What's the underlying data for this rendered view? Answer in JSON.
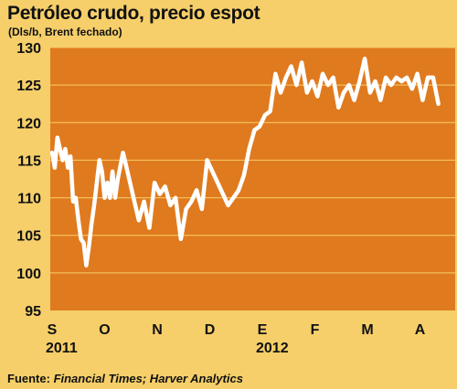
{
  "header": {
    "title": "Petróleo crudo, precio espot",
    "subtitle": "(Dls/b, Brent fechado)"
  },
  "footer": {
    "source_prefix": "Fuente: ",
    "source_names": "Financial Times; Harver Analytics"
  },
  "colors": {
    "page_bg": "#f6cf6a",
    "plot_bg": "#e07a1e",
    "line": "#ffffff",
    "grid": "#f6cf6a"
  },
  "chart_data": {
    "type": "line",
    "title": "Petróleo crudo, precio espot",
    "subtitle": "(Dls/b, Brent fechado)",
    "ylim": [
      95,
      130
    ],
    "yticks": [
      95,
      100,
      105,
      110,
      115,
      120,
      125,
      130
    ],
    "grid": true,
    "month_labels": [
      "S",
      "O",
      "N",
      "D",
      "E",
      "F",
      "M",
      "A"
    ],
    "year_labels": [
      {
        "label": "2011",
        "at_month": "S"
      },
      {
        "label": "2012",
        "at_month": "E"
      }
    ],
    "series": [
      {
        "x": [
          0.0,
          0.05,
          0.1,
          0.15,
          0.2,
          0.25,
          0.3,
          0.35,
          0.4,
          0.45,
          0.5,
          0.55,
          0.6,
          0.65,
          0.7,
          0.75,
          0.8,
          0.85,
          0.9,
          0.95,
          1.0,
          1.05,
          1.1,
          1.15,
          1.2,
          1.25,
          1.35,
          1.45,
          1.55,
          1.65,
          1.75,
          1.85,
          1.95,
          2.05,
          2.15,
          2.25,
          2.35,
          2.45,
          2.55,
          2.65,
          2.75,
          2.85,
          2.95,
          3.05,
          3.15,
          3.25,
          3.35,
          3.45,
          3.55,
          3.65,
          3.75,
          3.85,
          3.95,
          4.05,
          4.15,
          4.25,
          4.35,
          4.45,
          4.55,
          4.65,
          4.75,
          4.85,
          4.95,
          5.05,
          5.15,
          5.25,
          5.35,
          5.45,
          5.55,
          5.65,
          5.75,
          5.85,
          5.95,
          6.05,
          6.15,
          6.25,
          6.35,
          6.45,
          6.55,
          6.65,
          6.75,
          6.85,
          6.95,
          7.05,
          7.15,
          7.25,
          7.35
        ],
        "values": [
          116,
          114,
          118,
          116.5,
          115,
          116.5,
          114,
          115.5,
          109.5,
          110,
          107,
          104.5,
          104,
          101,
          103.5,
          106.5,
          109,
          112,
          115,
          113.5,
          110,
          112,
          110,
          113.5,
          110,
          112.5,
          116,
          113,
          110,
          107,
          109.5,
          106,
          112,
          110.5,
          111.5,
          109,
          110,
          104.5,
          108.5,
          109.5,
          111,
          108.5,
          115,
          113.5,
          112,
          110.5,
          109,
          110,
          111,
          113,
          116.5,
          119,
          119.5,
          121,
          121.5,
          126.5,
          124,
          126,
          127.5,
          125,
          128,
          124,
          125.5,
          123.5,
          126.5,
          125,
          126,
          122,
          124,
          125,
          123,
          125.5,
          128.5,
          124,
          125.5,
          123,
          126,
          125,
          126,
          125.5,
          126,
          124.5,
          126.5,
          123,
          126,
          126,
          122.5
        ]
      }
    ]
  }
}
